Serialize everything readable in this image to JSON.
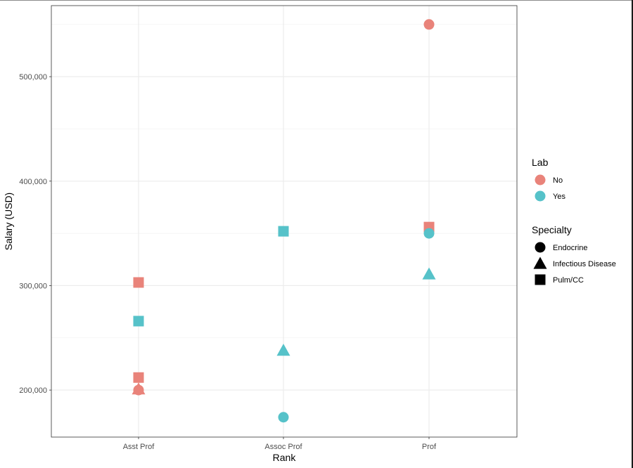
{
  "chart_data": {
    "type": "scatter",
    "xlabel": "Rank",
    "ylabel": "Salary (USD)",
    "categories": [
      "Asst Prof",
      "Assoc Prof",
      "Prof"
    ],
    "ylim": [
      155000,
      568000
    ],
    "yticks": [
      200000,
      300000,
      400000,
      500000
    ],
    "ytick_labels": [
      "200,000",
      "300,000",
      "400,000",
      "500,000"
    ],
    "grid": true,
    "points": [
      {
        "x": "Asst Prof",
        "y": 303000,
        "lab": "No",
        "specialty": "Pulm/CC"
      },
      {
        "x": "Asst Prof",
        "y": 266000,
        "lab": "Yes",
        "specialty": "Pulm/CC"
      },
      {
        "x": "Asst Prof",
        "y": 212000,
        "lab": "No",
        "specialty": "Pulm/CC"
      },
      {
        "x": "Asst Prof",
        "y": 200000,
        "lab": "No",
        "specialty": "Endocrine"
      },
      {
        "x": "Asst Prof",
        "y": 201000,
        "lab": "No",
        "specialty": "Infectious Disease"
      },
      {
        "x": "Assoc Prof",
        "y": 352000,
        "lab": "Yes",
        "specialty": "Pulm/CC"
      },
      {
        "x": "Assoc Prof",
        "y": 238000,
        "lab": "Yes",
        "specialty": "Infectious Disease"
      },
      {
        "x": "Assoc Prof",
        "y": 174000,
        "lab": "Yes",
        "specialty": "Endocrine"
      },
      {
        "x": "Prof",
        "y": 550000,
        "lab": "No",
        "specialty": "Endocrine"
      },
      {
        "x": "Prof",
        "y": 356000,
        "lab": "No",
        "specialty": "Pulm/CC"
      },
      {
        "x": "Prof",
        "y": 350000,
        "lab": "Yes",
        "specialty": "Endocrine"
      },
      {
        "x": "Prof",
        "y": 311000,
        "lab": "Yes",
        "specialty": "Infectious Disease"
      }
    ],
    "legend_position": "right",
    "legends": [
      {
        "title": "Lab",
        "kind": "color",
        "items": [
          {
            "label": "No",
            "color": "#E9837A"
          },
          {
            "label": "Yes",
            "color": "#56C2C9"
          }
        ]
      },
      {
        "title": "Specialty",
        "kind": "shape",
        "items": [
          {
            "label": "Endocrine",
            "shape": "circle"
          },
          {
            "label": "Infectious Disease",
            "shape": "triangle"
          },
          {
            "label": "Pulm/CC",
            "shape": "square"
          }
        ]
      }
    ],
    "colors": {
      "No": "#E9837A",
      "Yes": "#56C2C9"
    }
  }
}
